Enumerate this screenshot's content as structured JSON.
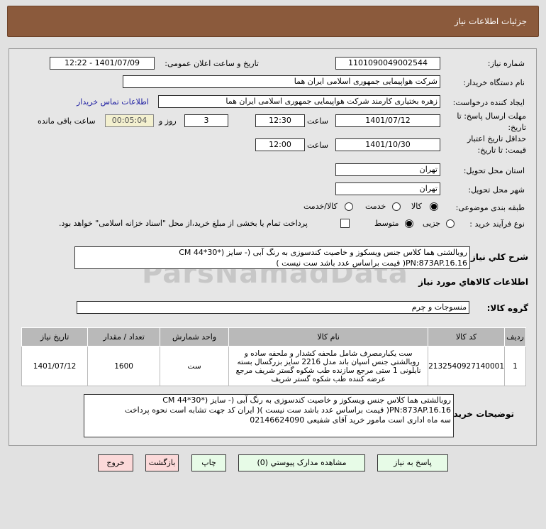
{
  "header": {
    "title": "جزئیات اطلاعات نیاز"
  },
  "watermark": "ParsNamadData",
  "form": {
    "need_number_label": "شماره نیاز:",
    "need_number": "1101090049002544",
    "announce_label": "تاریخ و ساعت اعلان عمومی:",
    "announce_value": "1401/07/09 - 12:22",
    "buyer_org_label": "نام دستگاه خریدار:",
    "buyer_org": "شرکت هواپیمایی جمهوری اسلامی ایران هما",
    "creator_label": "ایجاد کننده درخواست:",
    "creator": "زهره بختیاری کارمند شرکت هواپیمایی جمهوری اسلامی ایران هما",
    "contact_link": "اطلاعات تماس خریدار",
    "deadline_label": "مهلت ارسال پاسخ: تا تاریخ:",
    "deadline_date": "1401/07/12",
    "time_label": "ساعت",
    "deadline_time": "12:30",
    "days": "3",
    "days_label": "روز و",
    "countdown": "00:05:04",
    "remaining_label": "ساعت باقی مانده",
    "validity_label": "حداقل تاریخ اعتبار قیمت: تا تاریخ:",
    "validity_date": "1401/10/30",
    "validity_time": "12:00",
    "province_label": "استان محل تحویل:",
    "province": "تهران",
    "city_label": "شهر محل تحویل:",
    "city": "تهران",
    "category_label": "طبقه بندی موضوعی:",
    "category_options": [
      "کالا",
      "خدمت",
      "کالا/خدمت"
    ],
    "category_selected": "کالا",
    "process_label": "نوع فرآیند خرید :",
    "process_options": [
      "جزیی",
      "متوسط"
    ],
    "process_selected": "متوسط",
    "payment_note": "پرداخت تمام یا بخشی از مبلغ خرید،از محل \"اسناد خزانه اسلامی\" خواهد بود.",
    "description_label": "شرح کلي نياز:",
    "description_line1": "روبالشتی  هما کلاس جنس ویسکوز و خاصیت کندسوزی به رنگ آبی  (- سایز (*30*44 CM",
    "description_line2": "PN:873AP.16.16( قیمت براساس عدد باشد ست نیست )"
  },
  "goods": {
    "section_title": "اطلاعات کالاهاي مورد نياز",
    "group_label": "گروه کالا:",
    "group": "منسوجات و چرم",
    "columns": [
      "ردیف",
      "کد کالا",
      "نام کالا",
      "واحد شمارش",
      "تعداد / مقدار",
      "تاریخ نیاز"
    ],
    "rows": [
      {
        "index": "1",
        "code": "2132540927140001",
        "name": "ست یکبارمصرف شامل ملحفه کشدار و ملحفه ساده و روبالشتی جنس اسپان باند مدل 2216 سایز بزرگسال بسته نایلونی 1 ستی مرجع سازنده طب شکوه گستر شریف مرجع عرضه کننده طب شکوه گستر شریف",
        "unit": "ست",
        "qty": "1600",
        "date": "1401/07/12"
      }
    ]
  },
  "notes": {
    "label": "توضیحات خریدار:",
    "line1": "روبالشتی  هما کلاس جنس ویسکوز و خاصیت کندسوزی به رنگ آبی  (- سایز (*30*44 CM",
    "line2": "PN:873AP.16.16( قیمت براساس عدد باشد ست نیست )( ایران کد جهت تشابه است نحوه پرداخت",
    "line3": "سه ماه اداری است مامور خرید آقای شفیعی 02146624090"
  },
  "buttons": {
    "reply": "پاسخ به نیاز",
    "attachments": "مشاهده مدارک پیوستي (0)",
    "print": "چاپ",
    "back": "بازگشت",
    "exit": "خروج"
  }
}
